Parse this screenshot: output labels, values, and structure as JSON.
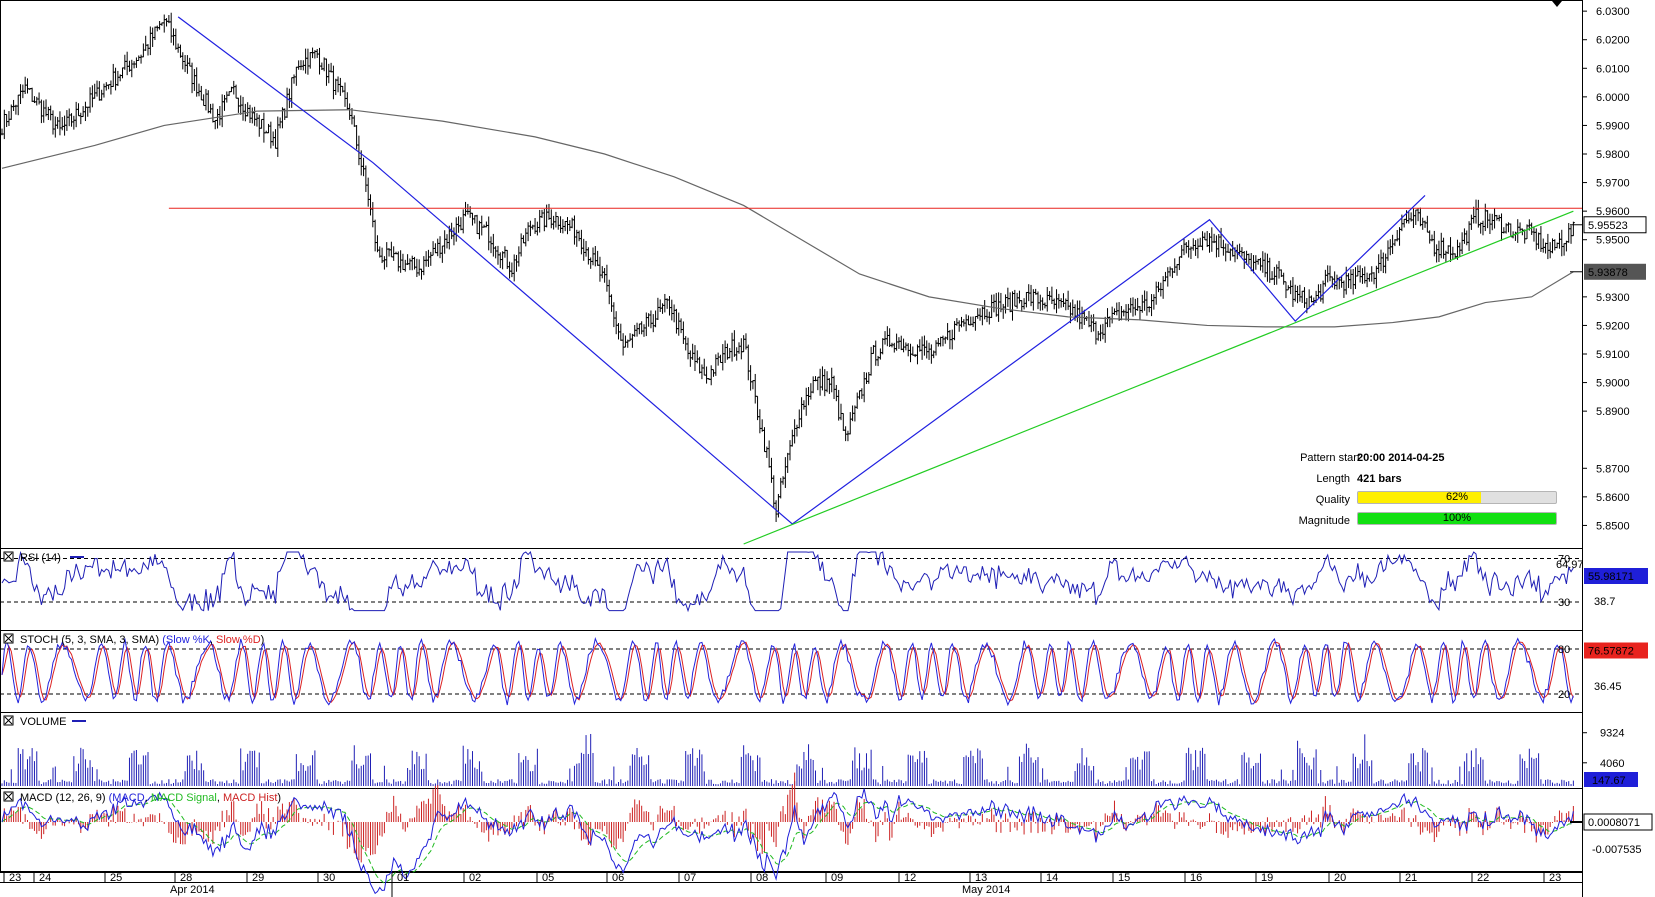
{
  "chart_data": {
    "type": "candlestick",
    "instrument_timeframe": "1h bars",
    "price_axis": {
      "ticks": [
        "6.0300",
        "6.0200",
        "6.0100",
        "6.0000",
        "5.9900",
        "5.9800",
        "5.9700",
        "5.9600",
        "5.9500",
        "5.9300",
        "5.9200",
        "5.9100",
        "5.9000",
        "5.8900",
        "5.8700",
        "5.8600",
        "5.8500"
      ],
      "range": [
        5.8435,
        6.0325
      ],
      "last_price": "5.95523",
      "ma_value": "5.93878"
    },
    "resistance_level": 5.961,
    "price_path": [
      [
        0,
        5.99
      ],
      [
        10,
        6.003
      ],
      [
        25,
        5.988
      ],
      [
        45,
        6.004
      ],
      [
        60,
        6.015
      ],
      [
        70,
        6.027
      ],
      [
        80,
        6.01
      ],
      [
        92,
        5.992
      ],
      [
        100,
        6.002
      ],
      [
        108,
        5.993
      ],
      [
        118,
        5.985
      ],
      [
        128,
        6.012
      ],
      [
        136,
        6.015
      ],
      [
        150,
        5.995
      ],
      [
        158,
        5.965
      ],
      [
        162,
        5.945
      ],
      [
        172,
        5.942
      ],
      [
        180,
        5.94
      ],
      [
        190,
        5.949
      ],
      [
        200,
        5.958
      ],
      [
        210,
        5.952
      ],
      [
        220,
        5.94
      ],
      [
        228,
        5.955
      ],
      [
        238,
        5.958
      ],
      [
        248,
        5.953
      ],
      [
        260,
        5.935
      ],
      [
        268,
        5.912
      ],
      [
        278,
        5.92
      ],
      [
        288,
        5.928
      ],
      [
        296,
        5.91
      ],
      [
        304,
        5.902
      ],
      [
        314,
        5.912
      ],
      [
        320,
        5.914
      ],
      [
        326,
        5.89
      ],
      [
        330,
        5.875
      ],
      [
        334,
        5.855
      ],
      [
        338,
        5.87
      ],
      [
        344,
        5.89
      ],
      [
        350,
        5.9
      ],
      [
        358,
        5.9
      ],
      [
        364,
        5.88
      ],
      [
        370,
        5.895
      ],
      [
        376,
        5.91
      ],
      [
        384,
        5.915
      ],
      [
        394,
        5.912
      ],
      [
        402,
        5.91
      ],
      [
        412,
        5.92
      ],
      [
        422,
        5.925
      ],
      [
        432,
        5.927
      ],
      [
        442,
        5.93
      ],
      [
        452,
        5.928
      ],
      [
        462,
        5.925
      ],
      [
        472,
        5.918
      ],
      [
        484,
        5.925
      ],
      [
        496,
        5.928
      ],
      [
        508,
        5.945
      ],
      [
        518,
        5.951
      ],
      [
        528,
        5.948
      ],
      [
        538,
        5.942
      ],
      [
        550,
        5.938
      ],
      [
        558,
        5.93
      ],
      [
        566,
        5.928
      ],
      [
        572,
        5.936
      ],
      [
        582,
        5.935
      ],
      [
        594,
        5.94
      ],
      [
        604,
        5.956
      ],
      [
        610,
        5.958
      ],
      [
        618,
        5.948
      ],
      [
        628,
        5.946
      ],
      [
        636,
        5.958
      ],
      [
        646,
        5.956
      ],
      [
        652,
        5.953
      ],
      [
        660,
        5.952
      ],
      [
        668,
        5.946
      ],
      [
        673,
        5.95
      ],
      [
        678,
        5.953
      ]
    ],
    "ma_path": [
      [
        0,
        5.975
      ],
      [
        40,
        5.983
      ],
      [
        70,
        5.99
      ],
      [
        110,
        5.995
      ],
      [
        150,
        5.9955
      ],
      [
        190,
        5.9915
      ],
      [
        230,
        5.986
      ],
      [
        260,
        5.98
      ],
      [
        290,
        5.972
      ],
      [
        320,
        5.962
      ],
      [
        345,
        5.95
      ],
      [
        370,
        5.938
      ],
      [
        400,
        5.93
      ],
      [
        430,
        5.926
      ],
      [
        460,
        5.923
      ],
      [
        490,
        5.922
      ],
      [
        520,
        5.92
      ],
      [
        545,
        5.9195
      ],
      [
        575,
        5.9195
      ],
      [
        600,
        5.921
      ],
      [
        620,
        5.923
      ],
      [
        640,
        5.928
      ],
      [
        660,
        5.93
      ],
      [
        678,
        5.93878
      ]
    ],
    "pattern_lines": [
      [
        [
          76,
          6.028
        ],
        [
          160,
          5.977
        ],
        [
          341,
          5.8505
        ],
        [
          521,
          5.957
        ],
        [
          558,
          5.9215
        ],
        [
          614,
          5.9655
        ]
      ]
    ],
    "trend_line": [
      [
        320,
        5.8435
      ],
      [
        678,
        5.96
      ]
    ],
    "pattern_info": {
      "pattern_start_label": "Pattern start",
      "pattern_start": "20:00 2014-04-25",
      "length_label": "Length",
      "length": "421 bars",
      "quality_label": "Quality",
      "quality": "62%",
      "quality_fraction": 0.62,
      "magnitude_label": "Magnitude",
      "magnitude": "100%",
      "magnitude_fraction": 1.0
    },
    "rsi": {
      "label": "RSI (14)",
      "levels": [
        "70",
        "30"
      ],
      "top_tick": "64.97",
      "bottom_tick": "38.7",
      "last_value": "55.98171"
    },
    "stoch": {
      "label": "STOCH (5, 3, SMA, 3, SMA)",
      "k_label": "Slow %K",
      "d_label": "Slow %D",
      "levels": [
        "80",
        "20"
      ],
      "ticks": [
        "36.45"
      ],
      "last_value": "76.57872"
    },
    "volume": {
      "label": "VOLUME",
      "ticks": [
        "9324",
        "4060"
      ],
      "last_value": "147.67"
    },
    "macd": {
      "label": "MACD (12, 26, 9)",
      "macd_label": "MACD",
      "signal_label": "MACD Signal",
      "hist_label": "MACD Hist",
      "ticks": [
        "-0.007535"
      ],
      "last_value": "0.0008071"
    },
    "x_axis": {
      "days": [
        "23",
        "24",
        "25",
        "28",
        "29",
        "30",
        "01",
        "02",
        "05",
        "06",
        "07",
        "08",
        "09",
        "12",
        "13",
        "14",
        "15",
        "16",
        "19",
        "20",
        "21",
        "22",
        "23"
      ],
      "months": [
        "Apr 2014",
        "May 2014"
      ]
    },
    "colors": {
      "price": "#000000",
      "ma": "#666666",
      "resistance": "#e8231e",
      "pattern": "#2020e0",
      "trend": "#22cc22",
      "rsi": "#1f1fb5",
      "stoch_k": "#2222dd",
      "stoch_d": "#dd2222",
      "volume": "#1f1fb5",
      "macd": "#1f1fd8",
      "signal": "#22bb22",
      "hist": "#cc2222",
      "quality": "#ffef00",
      "magnitude": "#11e011"
    }
  }
}
